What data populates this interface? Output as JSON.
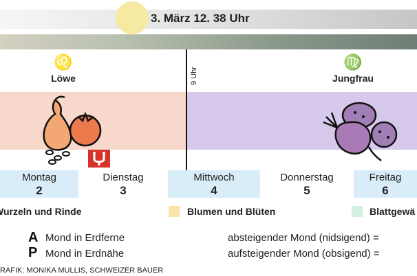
{
  "header": {
    "date_time": "3. März 12. 38 Uhr"
  },
  "moon_change": {
    "time_label": "9 Uhr"
  },
  "signs": [
    {
      "glyph": "♌",
      "name": "Löwe"
    },
    {
      "glyph": "♍",
      "name": "Jungfrau"
    }
  ],
  "days": [
    {
      "name": "Montag",
      "date": "2"
    },
    {
      "name": "Dienstag",
      "date": "3"
    },
    {
      "name": "Mittwoch",
      "date": "4"
    },
    {
      "name": "Donnerstag",
      "date": "5"
    },
    {
      "name": "Freitag",
      "date": "6"
    }
  ],
  "legend": {
    "wurzeln": "Wurzeln und Rinde",
    "blumen": "Blumen und Blüten",
    "blatt": "Blattgewä",
    "blumen_color": "#fbe3a8",
    "blatt_color": "#d3efdf"
  },
  "symbols": {
    "apogee_symbol": "A",
    "apogee_text": "Mond in Erdferne",
    "perigee_symbol": "P",
    "perigee_text": "Mond in Erdnähe",
    "descending": "absteigender Mond (nidsigend) =",
    "ascending": "aufsteigender Mond (obsigend) ="
  },
  "credit": "RAFIK: MONIKA MULLIS, SCHWEIZER BAUER",
  "colors": {
    "fruit_band": "#f9d8cc",
    "root_band": "#d6c9ec",
    "day_blue": "#d9edf8",
    "apogee_badge": "#d7332a"
  },
  "icons": {
    "apogee_badge": "apogee-icon",
    "fruit": "pear-tomato-icon",
    "root": "beet-potato-icon"
  }
}
